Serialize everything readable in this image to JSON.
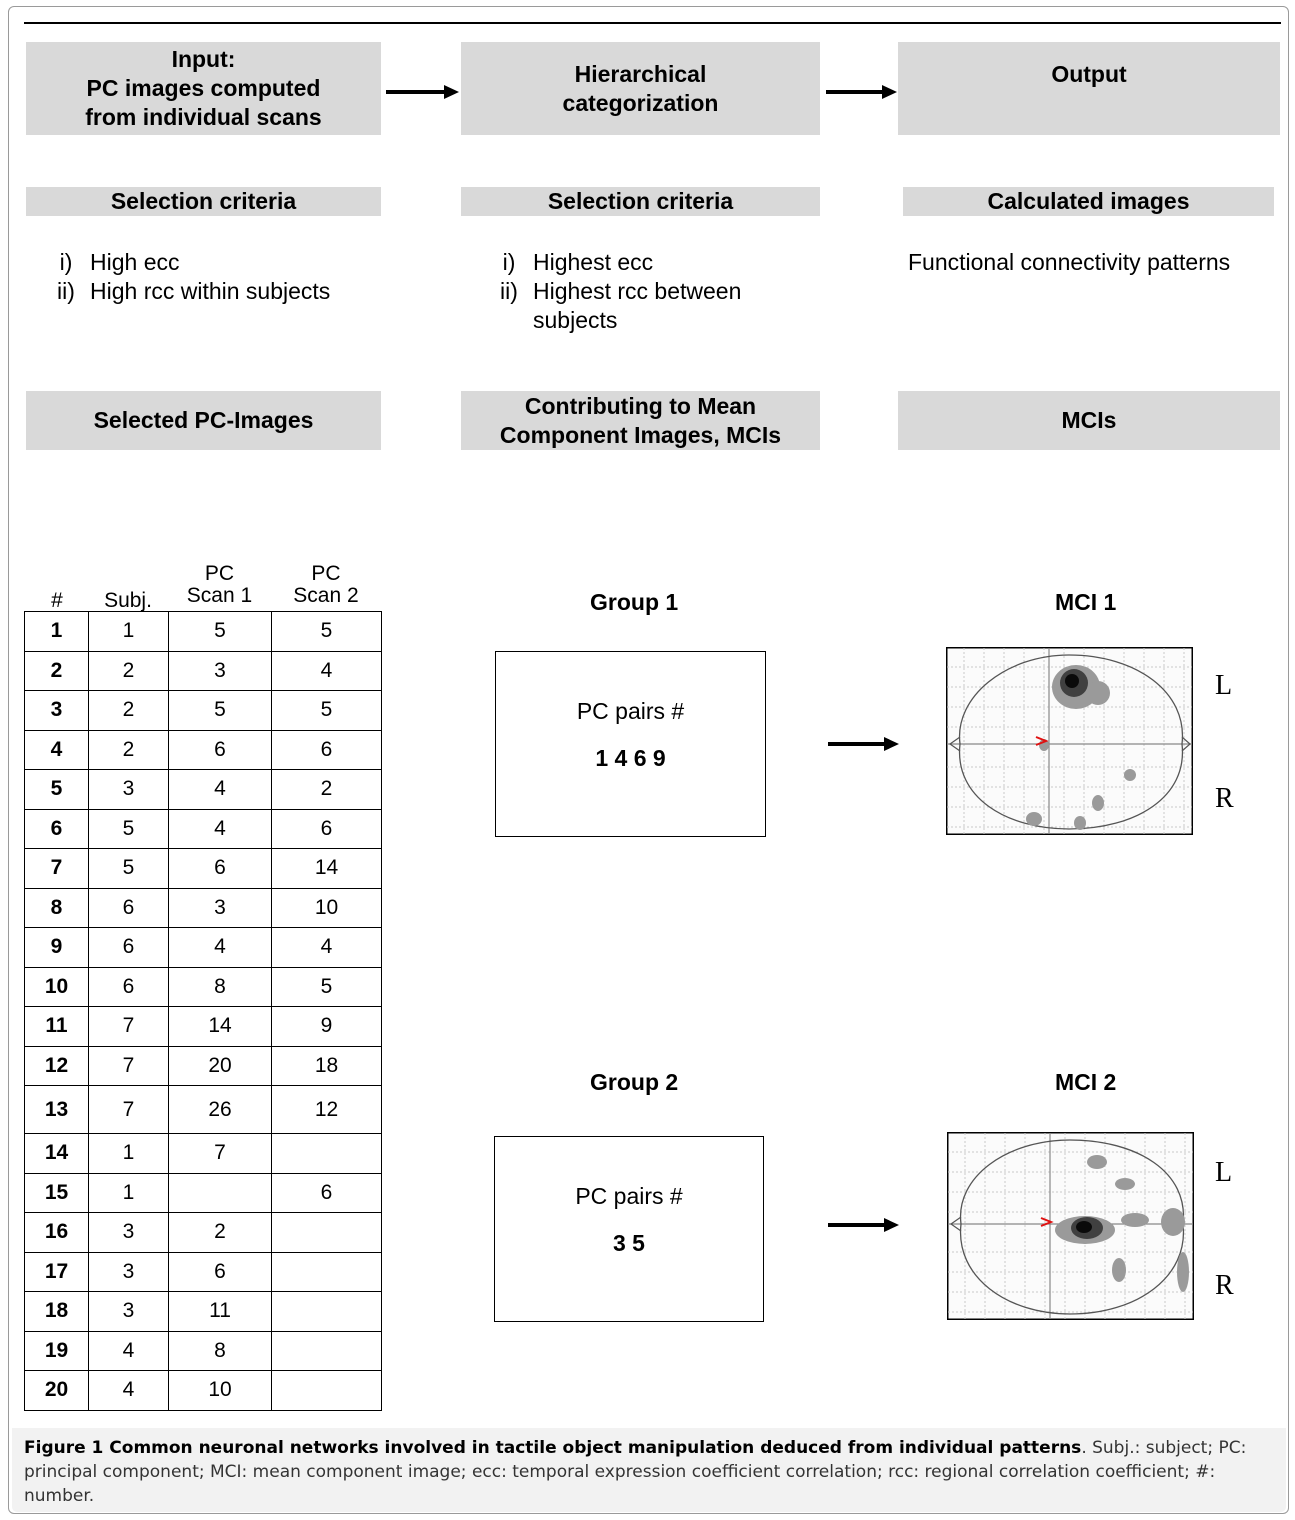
{
  "header": {
    "input_label": "Input:\nPC images computed\nfrom individual scans",
    "hier_label": "Hierarchical\ncategorization",
    "output_label": "Output"
  },
  "criteria": {
    "col1": {
      "title": "Selection criteria",
      "items": [
        {
          "num": "i)",
          "text": "High ecc"
        },
        {
          "num": "ii)",
          "text": "High rcc within subjects"
        }
      ]
    },
    "col2": {
      "title": "Selection criteria",
      "items": [
        {
          "num": "i)",
          "text": "Highest ecc"
        },
        {
          "num": "ii)",
          "text": "Highest rcc between subjects"
        }
      ]
    },
    "col3": {
      "title": "Calculated images",
      "text": "Functional connectivity patterns"
    }
  },
  "sections": {
    "selected": "Selected PC-Images",
    "contributing": "Contributing to Mean\nComponent Images, MCIs",
    "mcis": "MCIs"
  },
  "table": {
    "headers": {
      "num": "#",
      "subj": "Subj.",
      "scan1": "PC\nScan 1",
      "scan2": "PC\nScan 2"
    },
    "rows": [
      [
        "1",
        "1",
        "5",
        "5"
      ],
      [
        "2",
        "2",
        "3",
        "4"
      ],
      [
        "3",
        "2",
        "5",
        "5"
      ],
      [
        "4",
        "2",
        "6",
        "6"
      ],
      [
        "5",
        "3",
        "4",
        "2"
      ],
      [
        "6",
        "5",
        "4",
        "6"
      ],
      [
        "7",
        "5",
        "6",
        "14"
      ],
      [
        "8",
        "6",
        "3",
        "10"
      ],
      [
        "9",
        "6",
        "4",
        "4"
      ],
      [
        "10",
        "6",
        "8",
        "5"
      ],
      [
        "11",
        "7",
        "14",
        "9"
      ],
      [
        "12",
        "7",
        "20",
        "18"
      ],
      [
        "13",
        "7",
        "26",
        "12"
      ],
      [
        "14",
        "1",
        "7",
        ""
      ],
      [
        "15",
        "1",
        "",
        "6"
      ],
      [
        "16",
        "3",
        "2",
        ""
      ],
      [
        "17",
        "3",
        "6",
        ""
      ],
      [
        "18",
        "3",
        "11",
        ""
      ],
      [
        "19",
        "4",
        "8",
        ""
      ],
      [
        "20",
        "4",
        "10",
        ""
      ]
    ]
  },
  "groups": [
    {
      "title": "Group 1",
      "label": "PC pairs #",
      "pairs": "1 4 6 9",
      "mci_title": "MCI 1",
      "left_label": "L",
      "right_label": "R"
    },
    {
      "title": "Group 2",
      "label": "PC pairs #",
      "pairs": "3 5",
      "mci_title": "MCI 2",
      "left_label": "L",
      "right_label": "R"
    }
  ],
  "caption": {
    "bold": "Figure 1 Common neuronal networks involved in tactile object manipulation deduced from individual patterns",
    "text": ". Subj.: subject; PC: principal component; MCI: mean component image; ecc: temporal expression coefficient correlation; rcc: regional correlation coefficient; #: number."
  }
}
